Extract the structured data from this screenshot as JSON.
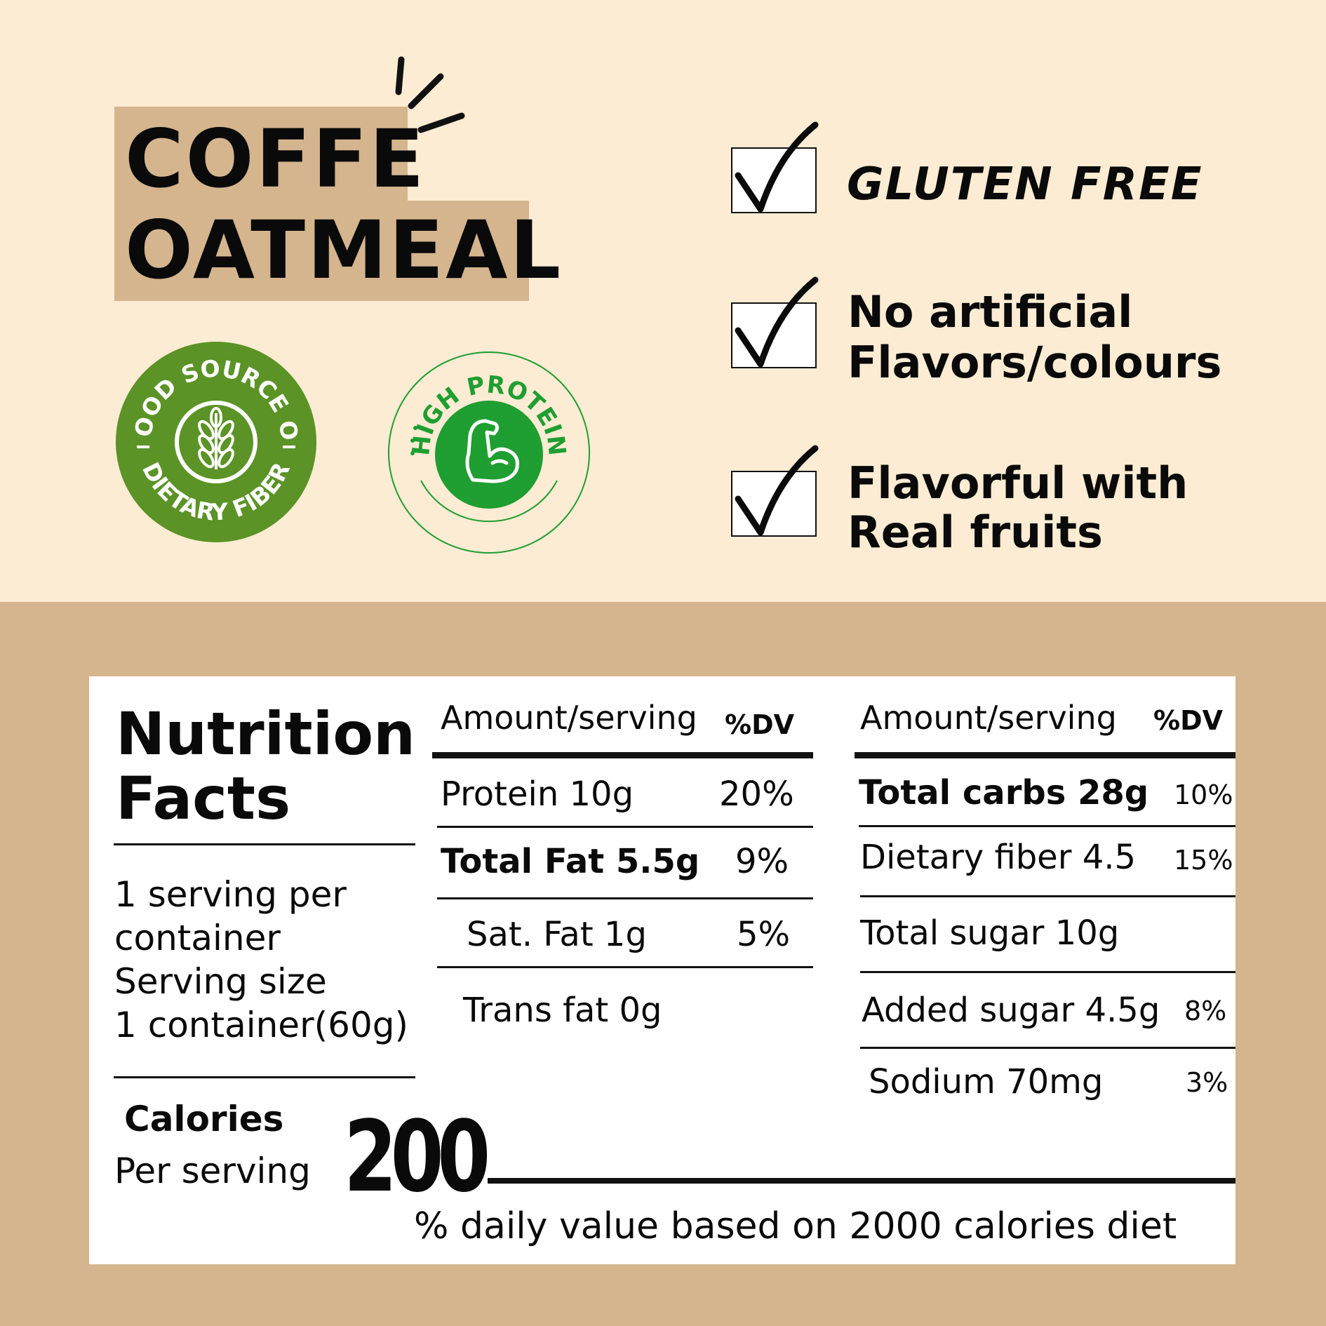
{
  "title": {
    "line1": "COFFE",
    "line2": "OATMEAL"
  },
  "badges": {
    "fiber": {
      "top_text": "GOOD SOURCE OF",
      "bottom_text": "DIETARY FIBER",
      "icon": "wheat-icon",
      "color": "#5b9326"
    },
    "protein": {
      "text": "HIGH PROTEIN",
      "icon": "flexed-arm-icon",
      "color": "#1f9e31"
    }
  },
  "claims": [
    {
      "lines": [
        "GLUTEN FREE"
      ]
    },
    {
      "lines": [
        "No artificial",
        "Flavors/colours"
      ]
    },
    {
      "lines": [
        "Flavorful with",
        "Real fruits"
      ]
    }
  ],
  "nutrition": {
    "heading": {
      "line1": "Nutrition",
      "line2": "Facts"
    },
    "serving": {
      "line1": "1 serving per",
      "line2": "container",
      "line3": "Serving size",
      "line4": "1 container(60g)"
    },
    "calories": {
      "label": "Calories",
      "sublabel": "Per serving",
      "value": "200"
    },
    "left_table": {
      "header_amount": "Amount/serving",
      "header_dv": "%DV",
      "rows": [
        {
          "label": "Protein 10g",
          "dv": "20%"
        },
        {
          "label": "Total Fat 5.5g",
          "dv": "9%"
        },
        {
          "label": "Sat. Fat 1g",
          "dv": "5%"
        },
        {
          "label": "Trans fat 0g",
          "dv": ""
        }
      ]
    },
    "right_table": {
      "header_amount": "Amount/serving",
      "header_dv": "%DV",
      "rows": [
        {
          "label": "Total carbs  28g",
          "dv": "10%"
        },
        {
          "label": "Dietary fiber 4.5",
          "dv": "15%"
        },
        {
          "label": "Total sugar 10g",
          "dv": ""
        },
        {
          "label": "Added sugar 4.5g",
          "dv": "8%"
        },
        {
          "label": "Sodium 70mg",
          "dv": "3%"
        }
      ]
    },
    "footnote": "% daily value based on 2000 calories diet"
  }
}
